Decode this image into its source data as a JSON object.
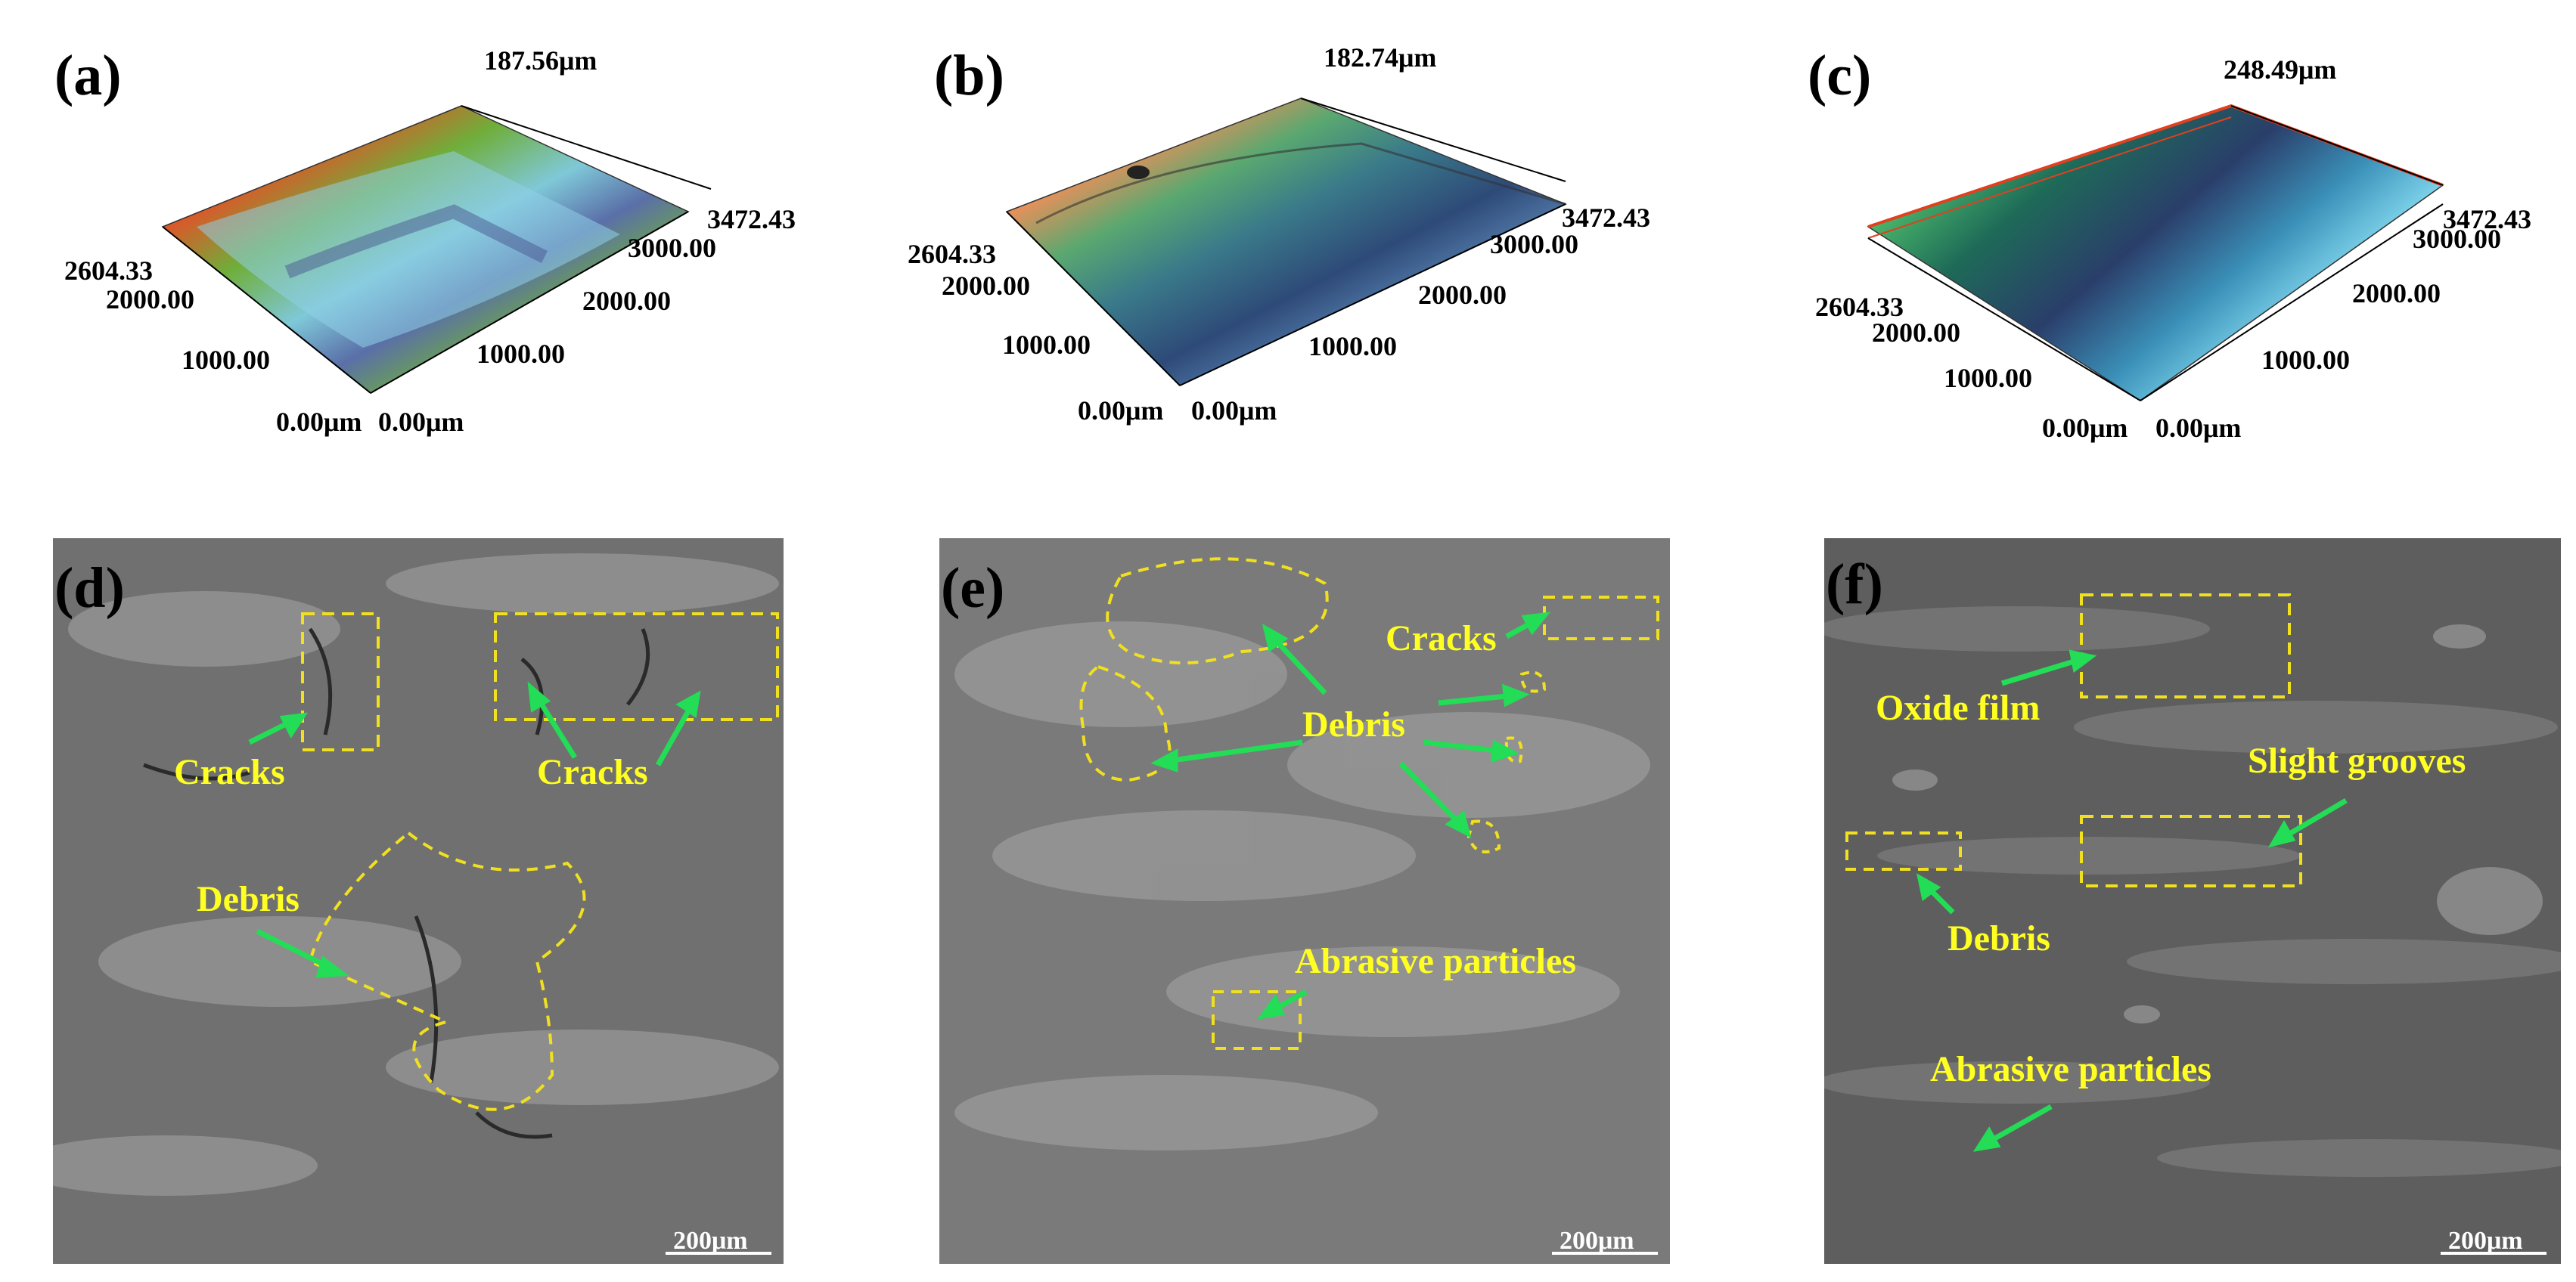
{
  "panels": {
    "a": {
      "label": "(a)",
      "z_max": "187.56μm",
      "y_max": "2604.33",
      "y_mid": "2000.00",
      "y_low": "1000.00",
      "y_zero": "0.00μm",
      "x_zero": "0.00μm",
      "x_low": "1000.00",
      "x_mid": "2000.00",
      "x_hi": "3000.00",
      "x_max": "3472.43"
    },
    "b": {
      "label": "(b)",
      "z_max": "182.74μm",
      "y_max": "2604.33",
      "y_mid": "2000.00",
      "y_low": "1000.00",
      "y_zero": "0.00μm",
      "x_zero": "0.00μm",
      "x_low": "1000.00",
      "x_mid": "2000.00",
      "x_hi": "3000.00",
      "x_max": "3472.43"
    },
    "c": {
      "label": "(c)",
      "z_max": "248.49μm",
      "y_max": "2604.33",
      "y_mid": "2000.00",
      "y_low": "1000.00",
      "y_zero": "0.00μm",
      "x_zero": "0.00μm",
      "x_low": "1000.00",
      "x_mid": "2000.00",
      "x_hi": "3000.00",
      "x_max": "3472.43"
    },
    "d": {
      "label": "(d)",
      "scale": "200μm",
      "ann": [
        "Cracks",
        "Cracks",
        "Debris"
      ]
    },
    "e": {
      "label": "(e)",
      "scale": "200μm",
      "ann": [
        "Cracks",
        "Debris",
        "Abrasive particles"
      ]
    },
    "f": {
      "label": "(f)",
      "scale": "200μm",
      "ann": [
        "Oxide film",
        "Slight grooves",
        "Debris",
        "Abrasive particles"
      ]
    }
  },
  "colors": {
    "annotation": "#ffff22",
    "arrow": "#22dd55",
    "box": "#f0e020"
  }
}
